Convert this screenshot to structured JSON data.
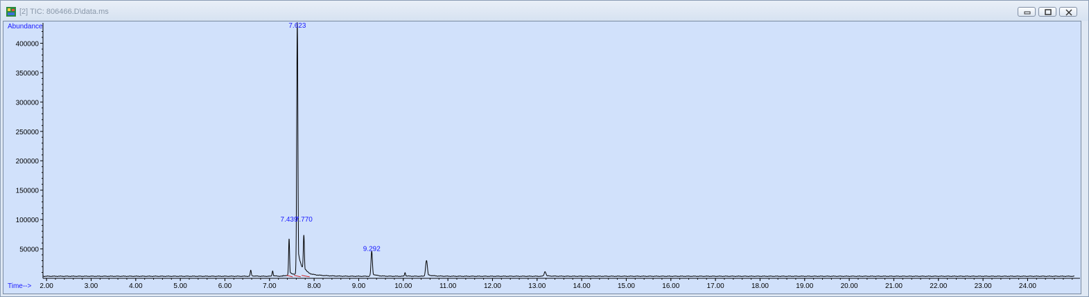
{
  "window": {
    "title": "[2] TIC: 806466.D\\data.ms"
  },
  "chart_data": {
    "type": "line",
    "ylabel": "Abundance",
    "xlabel": "Time-->",
    "xlim": [
      1.92,
      25.05
    ],
    "ylim": [
      0,
      430000
    ],
    "x_ticks": [
      "2.00",
      "3.00",
      "4.00",
      "5.00",
      "6.00",
      "7.00",
      "8.00",
      "9.00",
      "10.00",
      "11.00",
      "12.00",
      "13.00",
      "14.00",
      "15.00",
      "16.00",
      "17.00",
      "18.00",
      "19.00",
      "20.00",
      "21.00",
      "22.00",
      "23.00",
      "24.00"
    ],
    "y_ticks": [
      "50000",
      "100000",
      "150000",
      "200000",
      "250000",
      "300000",
      "350000",
      "400000"
    ],
    "peak_labels": [
      {
        "x": 7.439,
        "y": 100000,
        "text": "7.439"
      },
      {
        "x": 7.77,
        "y": 100000,
        "text": "7.770"
      },
      {
        "x": 7.623,
        "y": 430000,
        "text": "7.623"
      },
      {
        "x": 9.292,
        "y": 50000,
        "text": "9.292"
      }
    ],
    "baseline": 3500,
    "peaks": [
      {
        "rt": 6.58,
        "height": 10000
      },
      {
        "rt": 7.07,
        "height": 9000
      },
      {
        "rt": 7.439,
        "height": 62000
      },
      {
        "rt": 7.623,
        "height": 430000
      },
      {
        "rt": 7.77,
        "height": 60000
      },
      {
        "rt": 9.292,
        "height": 42000
      },
      {
        "rt": 10.04,
        "height": 6000
      },
      {
        "rt": 10.52,
        "height": 27000
      },
      {
        "rt": 13.18,
        "height": 8000
      }
    ],
    "line_color": "#000000",
    "label_color": "#1a1aff",
    "integration_color": "#cc2222"
  }
}
